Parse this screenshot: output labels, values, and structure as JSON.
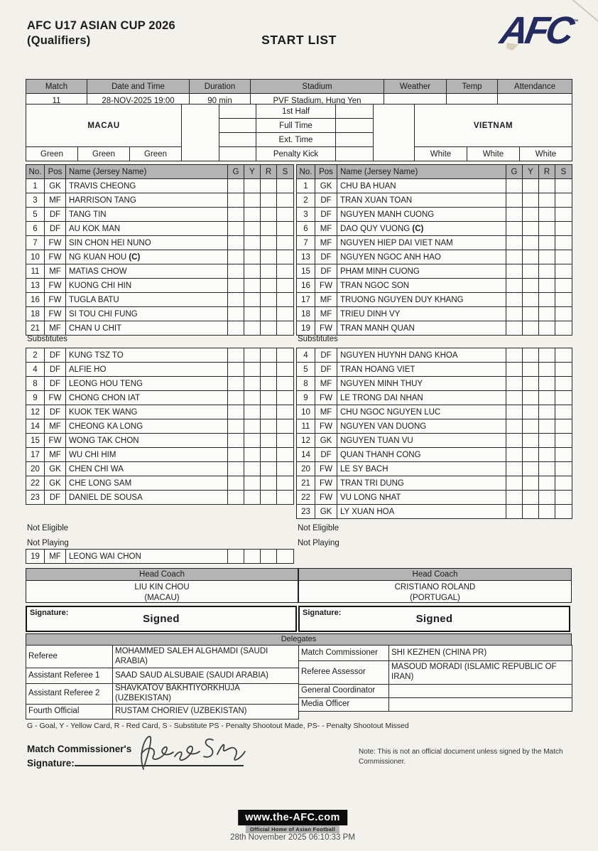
{
  "header": {
    "competition": "AFC U17 ASIAN CUP 2026",
    "competition_sub": "(Qualifiers)",
    "document_title": "START LIST",
    "logo": "AFC",
    "logo_tm": "™"
  },
  "match_info": {
    "headers": [
      "Match",
      "Date and Time",
      "Duration",
      "Stadium",
      "Weather",
      "Temp",
      "Attendance"
    ],
    "values": [
      "11",
      "28-NOV-2025 19:00",
      "90 min",
      "PVF Stadium, Hung Yen",
      "",
      "",
      ""
    ]
  },
  "score_table": {
    "rows": [
      "1st Half",
      "Full Time",
      "Ext. Time",
      "Penalty Kick"
    ]
  },
  "labels": {
    "roster_columns": [
      "No.",
      "Pos",
      "Name (Jersey Name)",
      "G",
      "Y",
      "R",
      "S"
    ],
    "substitutes": "Substitutes",
    "not_eligible": "Not Eligible",
    "not_playing": "Not Playing",
    "head_coach": "Head Coach",
    "signature": "Signature:",
    "delegates": "Delegates"
  },
  "teams": {
    "home": {
      "name": "MACAU",
      "kit": [
        "Green",
        "Green",
        "Green"
      ],
      "coach": {
        "name": "LIU KIN CHOU",
        "country": "(MACAU)"
      },
      "signature": "Signed",
      "starting": [
        {
          "no": "1",
          "pos": "GK",
          "name": "TRAVIS CHEONG"
        },
        {
          "no": "3",
          "pos": "MF",
          "name": "HARRISON TANG"
        },
        {
          "no": "5",
          "pos": "DF",
          "name": "TANG TIN"
        },
        {
          "no": "6",
          "pos": "DF",
          "name": "AU KOK MAN"
        },
        {
          "no": "7",
          "pos": "FW",
          "name": "SIN CHON HEI NUNO"
        },
        {
          "no": "10",
          "pos": "FW",
          "name": "NG KUAN HOU",
          "c": true
        },
        {
          "no": "11",
          "pos": "MF",
          "name": "MATIAS CHOW"
        },
        {
          "no": "13",
          "pos": "FW",
          "name": "KUONG CHI HIN"
        },
        {
          "no": "16",
          "pos": "FW",
          "name": "TUGLA BATU"
        },
        {
          "no": "18",
          "pos": "FW",
          "name": "SI TOU CHI FUNG"
        },
        {
          "no": "21",
          "pos": "MF",
          "name": "CHAN U CHIT"
        }
      ],
      "substitutes": [
        {
          "no": "2",
          "pos": "DF",
          "name": "KUNG TSZ TO"
        },
        {
          "no": "4",
          "pos": "DF",
          "name": "ALFIE HO"
        },
        {
          "no": "8",
          "pos": "DF",
          "name": "LEONG HOU TENG"
        },
        {
          "no": "9",
          "pos": "FW",
          "name": "CHONG CHON IAT"
        },
        {
          "no": "12",
          "pos": "DF",
          "name": "KUOK TEK WANG"
        },
        {
          "no": "14",
          "pos": "MF",
          "name": "CHEONG KA LONG"
        },
        {
          "no": "15",
          "pos": "FW",
          "name": "WONG TAK CHON"
        },
        {
          "no": "17",
          "pos": "MF",
          "name": "WU CHI HIM"
        },
        {
          "no": "20",
          "pos": "GK",
          "name": "CHEN CHI WA"
        },
        {
          "no": "22",
          "pos": "GK",
          "name": "CHE LONG SAM"
        },
        {
          "no": "23",
          "pos": "DF",
          "name": "DANIEL DE SOUSA"
        }
      ],
      "not_playing": [
        {
          "no": "19",
          "pos": "MF",
          "name": "LEONG WAI CHON"
        }
      ]
    },
    "away": {
      "name": "VIETNAM",
      "kit": [
        "White",
        "White",
        "White"
      ],
      "coach": {
        "name": "CRISTIANO ROLAND",
        "country": "(PORTUGAL)"
      },
      "signature": "Signed",
      "starting": [
        {
          "no": "1",
          "pos": "GK",
          "name": "CHU BA HUAN"
        },
        {
          "no": "2",
          "pos": "DF",
          "name": "TRAN XUAN TOAN"
        },
        {
          "no": "3",
          "pos": "DF",
          "name": "NGUYEN MANH CUONG"
        },
        {
          "no": "6",
          "pos": "MF",
          "name": "DAO QUY VUONG",
          "c": true
        },
        {
          "no": "7",
          "pos": "MF",
          "name": "NGUYEN HIEP DAI VIET NAM"
        },
        {
          "no": "13",
          "pos": "DF",
          "name": "NGUYEN NGOC ANH HAO"
        },
        {
          "no": "15",
          "pos": "DF",
          "name": "PHAM MINH CUONG"
        },
        {
          "no": "16",
          "pos": "FW",
          "name": "TRAN NGOC SON"
        },
        {
          "no": "17",
          "pos": "MF",
          "name": "TRUONG NGUYEN DUY KHANG"
        },
        {
          "no": "18",
          "pos": "MF",
          "name": "TRIEU DINH VY"
        },
        {
          "no": "19",
          "pos": "FW",
          "name": "TRAN MANH QUAN"
        }
      ],
      "substitutes": [
        {
          "no": "4",
          "pos": "DF",
          "name": "NGUYEN HUYNH DANG KHOA"
        },
        {
          "no": "5",
          "pos": "DF",
          "name": "TRAN HOANG VIET"
        },
        {
          "no": "8",
          "pos": "MF",
          "name": "NGUYEN MINH THUY"
        },
        {
          "no": "9",
          "pos": "FW",
          "name": "LE TRONG DAI NHAN"
        },
        {
          "no": "10",
          "pos": "MF",
          "name": "CHU NGOC NGUYEN LUC"
        },
        {
          "no": "11",
          "pos": "FW",
          "name": "NGUYEN VAN DUONG"
        },
        {
          "no": "12",
          "pos": "GK",
          "name": "NGUYEN TUAN VU"
        },
        {
          "no": "14",
          "pos": "DF",
          "name": "QUAN THANH CONG"
        },
        {
          "no": "20",
          "pos": "FW",
          "name": "LE SY BACH"
        },
        {
          "no": "21",
          "pos": "FW",
          "name": "TRAN TRI DUNG"
        },
        {
          "no": "22",
          "pos": "FW",
          "name": "VU LONG NHAT"
        },
        {
          "no": "23",
          "pos": "GK",
          "name": "LY XUAN HOA"
        }
      ],
      "not_playing": []
    }
  },
  "delegates": {
    "left": [
      {
        "role": "Referee",
        "name": "MOHAMMED SALEH ALGHAMDI (SAUDI ARABIA)"
      },
      {
        "role": "Assistant Referee 1",
        "name": "SAAD SAUD ALSUBAIE (SAUDI ARABIA)"
      },
      {
        "role": "Assistant Referee 2",
        "name": "SHAVKATOV BAKHTIYORKHUJA (UZBEKISTAN)"
      },
      {
        "role": "Fourth Official",
        "name": "RUSTAM CHORIEV (UZBEKISTAN)"
      }
    ],
    "right": [
      {
        "role": "Match Commissioner",
        "name": "SHI KEZHEN (CHINA PR)"
      },
      {
        "role": "Referee Assessor",
        "name": "MASOUD MORADI (ISLAMIC REPUBLIC OF IRAN)"
      },
      {
        "role": "General Coordinator",
        "name": ""
      },
      {
        "role": "Media Officer",
        "name": ""
      }
    ]
  },
  "legend": "G - Goal, Y - Yellow Card, R - Red Card, S - Substitute PS - Penalty Shootout Made, PS- - Penalty Shootout Missed",
  "commissioner": {
    "label_line1": "Match Commissioner's",
    "label_line2": "Signature:",
    "note": "Note: This is not an official document unless signed by the Match Commissioner."
  },
  "footer": {
    "url": "www.the-AFC.com",
    "tagline": "Official Home of Asian Football",
    "timestamp": "28th November 2025 06:10:33 PM"
  },
  "colors": {
    "accent_navy": "#262b5e",
    "header_gray": "#b4b4b4"
  }
}
